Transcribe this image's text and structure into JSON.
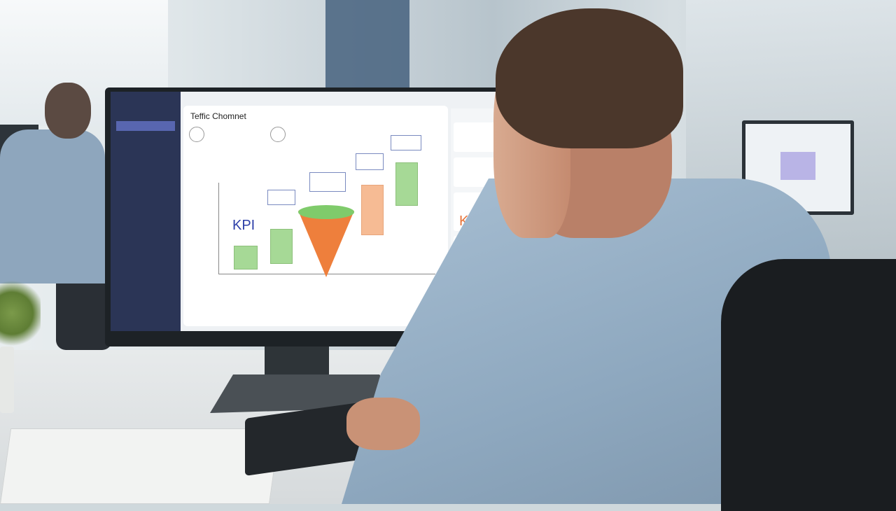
{
  "scene": "office worker viewing a dashboard on a monitor",
  "screen": {
    "sidebar_items": [
      "",
      "",
      "",
      "",
      "",
      "",
      "",
      ""
    ],
    "title": "Teffic Chomnet",
    "chart_kpi_label": "KPI",
    "right_panel_kpi": "KPI",
    "colors": {
      "sidebar": "#2b3556",
      "bar_green": "#a6d996",
      "funnel_orange": "#ee7f3c",
      "bar_peach": "#f6bb94",
      "kpi_blue": "#2d3fa8"
    }
  }
}
